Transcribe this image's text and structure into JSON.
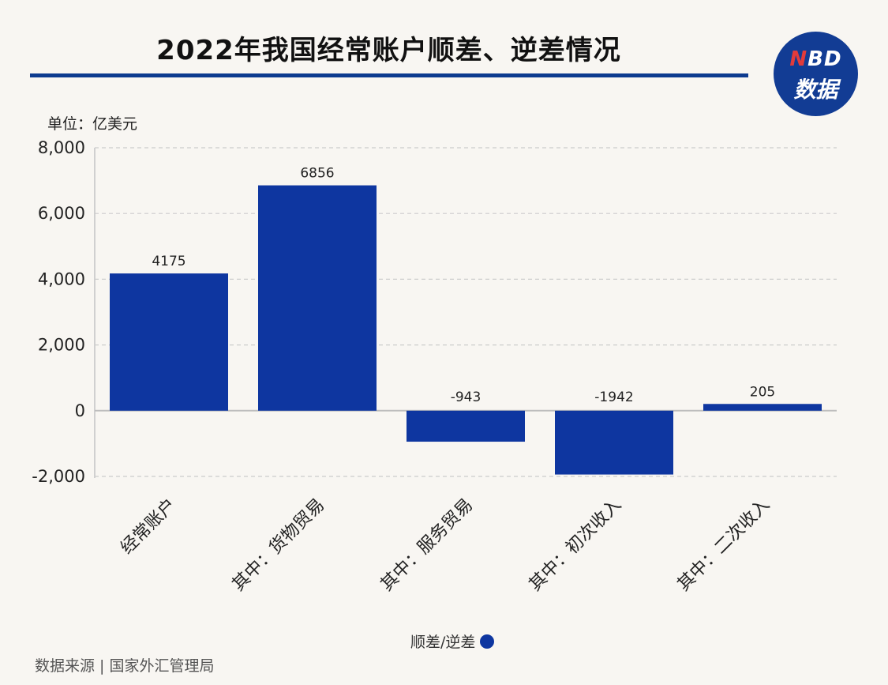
{
  "header": {
    "title": "2022年我国经常账户顺差、逆差情况",
    "logo_top": "NBD",
    "logo_bottom": "数据"
  },
  "unit_label": "单位：亿美元",
  "legend_label": "顺差/逆差",
  "source": "数据来源 | 国家外汇管理局",
  "colors": {
    "bar": "#0e36a0",
    "title_rule": "#0d3b8f",
    "grid": "#cccccc"
  },
  "chart_data": {
    "type": "bar",
    "categories": [
      "经常账户",
      "其中：货物贸易",
      "其中：服务贸易",
      "其中：初次收入",
      "其中：二次收入"
    ],
    "series": [
      {
        "name": "顺差/逆差",
        "values": [
          4175,
          6856,
          -943,
          -1942,
          205
        ]
      }
    ],
    "ylim": [
      -2000,
      8000
    ],
    "yticks": [
      8000,
      6000,
      4000,
      2000,
      0,
      -2000
    ],
    "ytick_labels": [
      "8,000",
      "6,000",
      "4,000",
      "2,000",
      "0",
      "-2,000"
    ],
    "data_labels": [
      "4175",
      "6856",
      "-943",
      "-1942",
      "205"
    ],
    "grid": true,
    "legend_position": "bottom"
  }
}
